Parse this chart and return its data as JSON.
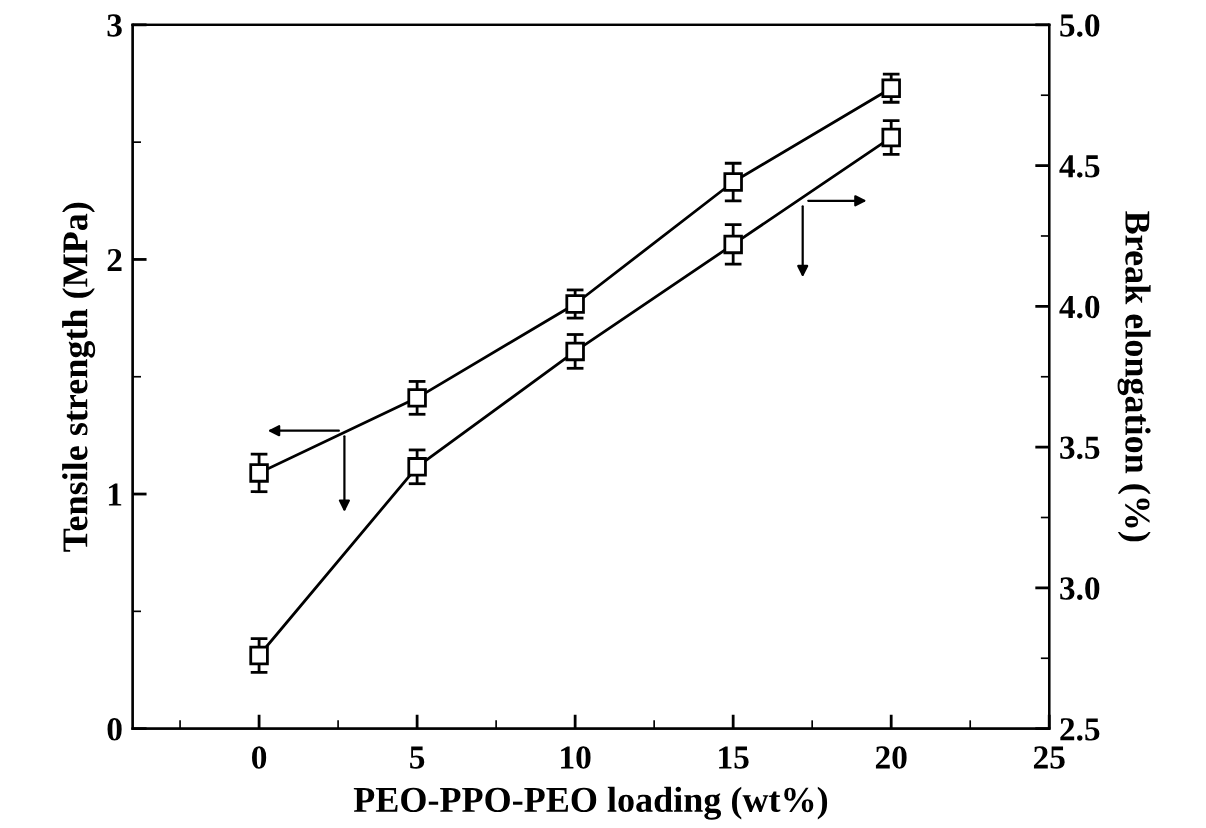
{
  "chart_data": {
    "type": "line",
    "xlabel": "PEO-PPO-PEO loading (wt%)",
    "ylabel": "Tensile strength (MPa)",
    "y2label": "Break elongation (%)",
    "x": [
      0,
      5,
      10,
      15,
      20
    ],
    "series": [
      {
        "color": "#000000",
        "values": [
          1.09,
          1.41,
          1.81,
          2.33,
          2.73
        ],
        "errors": [
          0.08,
          0.07,
          0.06,
          0.08,
          0.06
        ]
      },
      {
        "axis": "y2",
        "color": "#000000",
        "values": [
          2.76,
          3.43,
          3.84,
          4.22,
          4.6
        ],
        "errors": [
          0.06,
          0.06,
          0.06,
          0.07,
          0.06
        ]
      }
    ],
    "xlim": [
      -4,
      25
    ],
    "xticks": [
      0,
      5,
      10,
      15,
      20,
      25
    ],
    "ylim": [
      0,
      3
    ],
    "yticks": [
      0,
      1,
      2,
      3
    ],
    "y2lim": [
      2.5,
      5.0
    ],
    "y2ticks": [
      {
        "value": 2.5,
        "label": "2.5"
      },
      {
        "value": 3.0,
        "label": "3.0"
      },
      {
        "value": 3.5,
        "label": "3.5"
      },
      {
        "value": 4.0,
        "label": "4.0"
      },
      {
        "value": 4.5,
        "label": "4.5"
      },
      {
        "value": 5.0,
        "label": "5.0"
      }
    ],
    "marker": "square",
    "line_style": "solid",
    "grid": false,
    "legend": false
  }
}
